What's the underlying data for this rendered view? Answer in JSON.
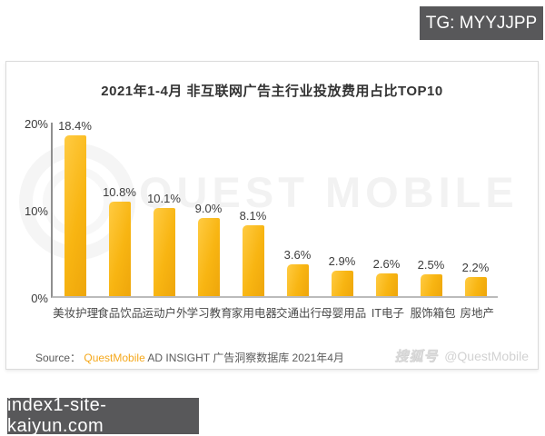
{
  "overlays": {
    "top_badge": "TG: MYYJJPP",
    "bottom_badge": "index1-site-kaiyun.com"
  },
  "chart_data": {
    "type": "bar",
    "title": "2021年1-4月 非互联网广告主行业投放费用占比TOP10",
    "categories": [
      "美妆护理",
      "食品饮品",
      "运动户外",
      "学习教育",
      "家用电器",
      "交通出行",
      "母婴用品",
      "IT电子",
      "服饰箱包",
      "房地产"
    ],
    "values": [
      18.4,
      10.8,
      10.1,
      9.0,
      8.1,
      3.6,
      2.9,
      2.6,
      2.5,
      2.2
    ],
    "value_labels": [
      "18.4%",
      "10.8%",
      "10.1%",
      "9.0%",
      "8.1%",
      "3.6%",
      "2.9%",
      "2.6%",
      "2.5%",
      "2.2%"
    ],
    "ylabel": "",
    "xlabel": "",
    "ylim": [
      0,
      20
    ],
    "y_ticks": [
      "20%",
      "10%",
      "0%"
    ],
    "grid": false,
    "legend_position": "none",
    "bar_color": "#F8B512"
  },
  "source": {
    "prefix": "Source：",
    "brand": "QuestMobile",
    "suffix": " AD INSIGHT 广告洞察数据库 2021年4月"
  },
  "watermarks": {
    "center_text": "QUEST MOBILE",
    "corner_logo": "搜狐号",
    "corner_handle": "@QuestMobile"
  }
}
